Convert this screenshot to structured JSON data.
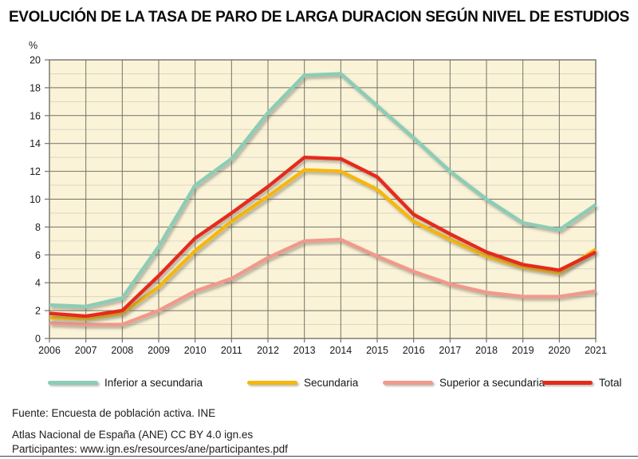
{
  "title": "EVOLUCIÓN DE LA TASA DE PARO DE LARGA DURACION SEGÚN NIVEL DE ESTUDIOS",
  "chart_data": {
    "type": "line",
    "ylabel": "%",
    "ylim": [
      0,
      20
    ],
    "y_ticks": [
      0,
      2,
      4,
      6,
      8,
      10,
      12,
      14,
      16,
      18,
      20
    ],
    "x": [
      2006,
      2007,
      2008,
      2009,
      2010,
      2011,
      2012,
      2013,
      2014,
      2015,
      2016,
      2017,
      2018,
      2019,
      2020,
      2021
    ],
    "series": [
      {
        "name": "Inferior a secundaria",
        "color": "#8bcdb6",
        "values": [
          2.4,
          2.3,
          2.9,
          6.6,
          11.0,
          12.9,
          16.2,
          18.9,
          19.0,
          16.7,
          14.4,
          12.0,
          10.0,
          8.3,
          7.8,
          9.6
        ]
      },
      {
        "name": "Secundaria",
        "color": "#f6b70d",
        "values": [
          1.5,
          1.4,
          1.8,
          3.7,
          6.3,
          8.4,
          10.2,
          12.1,
          12.0,
          10.7,
          8.4,
          7.1,
          5.9,
          5.1,
          4.7,
          6.4
        ]
      },
      {
        "name": "Superior a secundaria",
        "color": "#f1998b",
        "values": [
          1.1,
          1.0,
          1.0,
          2.0,
          3.4,
          4.3,
          5.8,
          7.0,
          7.1,
          5.9,
          4.8,
          3.9,
          3.3,
          3.0,
          3.0,
          3.4
        ]
      },
      {
        "name": "Total",
        "color": "#e62a1a",
        "values": [
          1.8,
          1.6,
          2.0,
          4.5,
          7.2,
          9.0,
          10.9,
          13.0,
          12.9,
          11.6,
          8.9,
          7.5,
          6.2,
          5.3,
          4.9,
          6.2
        ]
      }
    ],
    "grid": "on",
    "legend_position": "bottom",
    "plot_bg": "#fbf3d7",
    "grid_major_color": "#73726a",
    "grid_minor_color": "#ddd7c2"
  },
  "footer": {
    "source": "Fuente: Encuesta de población activa. INE",
    "attribution": "Atlas Nacional de España (ANE) CC BY 4.0 ign.es",
    "participants": "Participantes: www.ign.es/resources/ane/participantes.pdf"
  }
}
